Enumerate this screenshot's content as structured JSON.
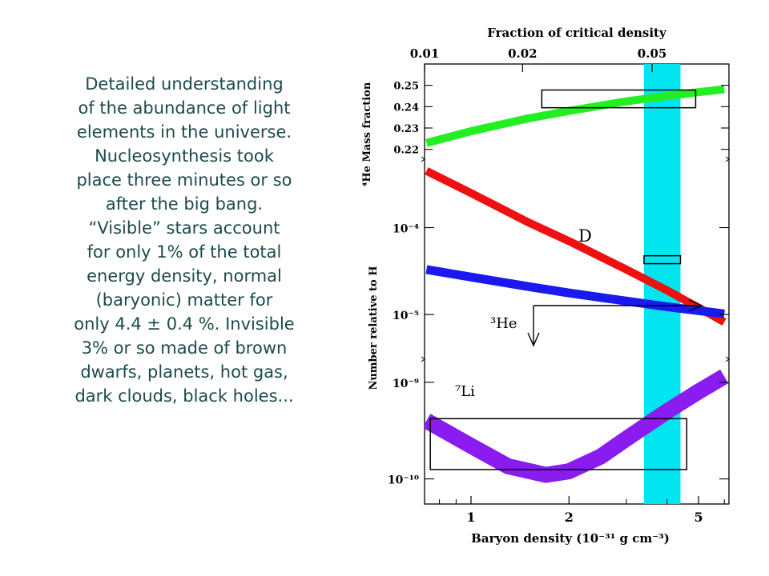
{
  "slide": {
    "text_lines": [
      "Detailed understanding",
      "of the abundance of light",
      "elements in the universe.",
      "Nucleosynthesis took",
      "place three minutes or so",
      "after the big bang.",
      "“Visible” stars account",
      "for only 1% of the total",
      "energy density, normal",
      "(baryonic) matter for",
      "only 4.4 ± 0.4 %. Invisible",
      "3% or so made of brown",
      "dwarfs, planets, hot gas,",
      "dark clouds, black holes..."
    ]
  },
  "chart_data": {
    "type": "line",
    "xlabel": "Baryon density (10⁻³¹ g cm⁻³)",
    "xscale": "log",
    "x_ticks": [
      1,
      2,
      5
    ],
    "x_range": [
      0.72,
      6.2
    ],
    "top_axis": {
      "label": "Fraction of critical density",
      "ticks": [
        "0.01",
        "0.02",
        "0.05"
      ]
    },
    "colors": {
      "he4": "#22ee22",
      "deuterium": "#ee1111",
      "he3": "#1a1aee",
      "li7": "#8a1cf0",
      "band": "#00e5f0"
    },
    "panels": {
      "he4": {
        "ylabel": "⁴He Mass fraction",
        "yticks": [
          "0.25",
          "0.24",
          "0.23",
          "0.22"
        ],
        "yrange": [
          0.215,
          0.26
        ],
        "x": [
          0.73,
          1.0,
          1.5,
          2.0,
          3.0,
          4.0,
          5.0,
          6.0
        ],
        "y": [
          0.223,
          0.2285,
          0.2345,
          0.238,
          0.2425,
          0.245,
          0.2468,
          0.2482
        ]
      },
      "deuterium_he3": {
        "ylabel": "Number relative to H",
        "yticks": [
          "10⁻⁴",
          "10⁻⁵"
        ],
        "series": [
          {
            "name": "D",
            "x": [
              0.73,
              1.0,
              1.5,
              2.0,
              3.0,
              4.0,
              5.0,
              6.0
            ],
            "y": [
              0.00045,
              0.00025,
              0.000115,
              7e-05,
              3.3e-05,
              1.9e-05,
              1.2e-05,
              8.2e-06
            ]
          },
          {
            "name": "³He",
            "x": [
              0.73,
              1.0,
              1.5,
              2.0,
              3.0,
              4.0,
              5.0,
              6.0
            ],
            "y": [
              3.3e-05,
              2.7e-05,
              2.1e-05,
              1.77e-05,
              1.43e-05,
              1.23e-05,
              1.11e-05,
              1.02e-05
            ]
          }
        ]
      },
      "li7": {
        "ylabel_ticks": [
          "10⁻⁹",
          "10⁻¹⁰"
        ],
        "series": [
          {
            "name": "⁷Li",
            "x": [
              0.73,
              1.0,
              1.3,
              1.7,
              2.0,
              2.5,
              3.0,
              4.0,
              5.0,
              6.0
            ],
            "y": [
              4e-10,
              2.2e-10,
              1.35e-10,
              1.1e-10,
              1.2e-10,
              1.7e-10,
              2.6e-10,
              5e-10,
              8e-10,
              1.15e-09
            ]
          }
        ]
      }
    },
    "shaded_band": {
      "x": [
        3.4,
        4.4
      ]
    },
    "boxes": [
      {
        "panel": "he4",
        "x": [
          1.65,
          4.9
        ],
        "y": [
          0.2395,
          0.2478
        ]
      },
      {
        "panel": "deuterium_he3",
        "x": [
          3.4,
          4.4
        ],
        "y": [
          3.85e-05,
          4.75e-05
        ]
      },
      {
        "panel": "li7",
        "x": [
          0.75,
          4.6
        ],
        "y": [
          1.25e-10,
          4.2e-10
        ]
      }
    ]
  }
}
